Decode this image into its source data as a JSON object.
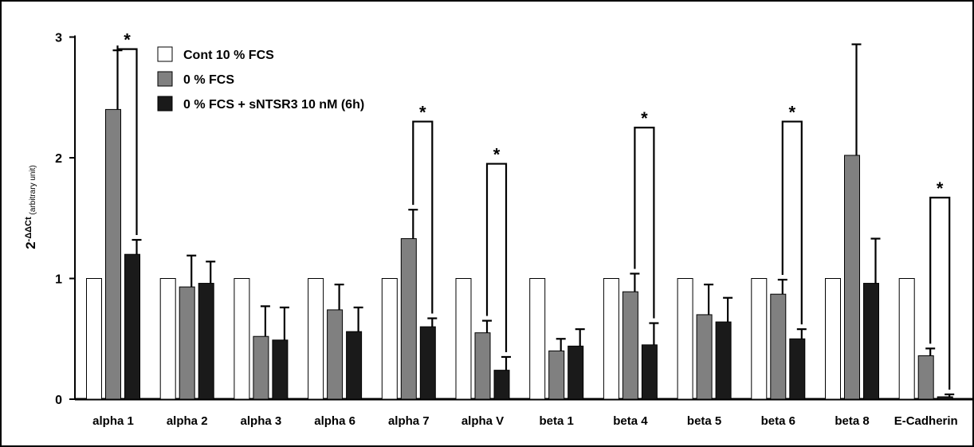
{
  "chart_data": {
    "type": "bar",
    "ylabel": {
      "main": "2",
      "superscript": "-ΔΔCt",
      "unit": " (arbitrary unit)"
    },
    "ylim": [
      0,
      3
    ],
    "yticks": [
      0,
      1,
      2,
      3
    ],
    "ytick_labels": [
      "0",
      "1",
      "2",
      "3"
    ],
    "grid": false,
    "legend_position": "top-left",
    "categories": [
      "alpha 1",
      "alpha 2",
      "alpha 3",
      "alpha 6",
      "alpha 7",
      "alpha V",
      "beta 1",
      "beta 4",
      "beta 5",
      "beta 6",
      "beta 8",
      "E-Cadherin"
    ],
    "series": [
      {
        "name": "Cont 10 % FCS",
        "color": "#ffffff",
        "values": [
          1,
          1,
          1,
          1,
          1,
          1,
          1,
          1,
          1,
          1,
          1,
          1
        ],
        "errors": [
          0,
          0,
          0,
          0,
          0,
          0,
          0,
          0,
          0,
          0,
          0,
          0
        ]
      },
      {
        "name": "0 % FCS",
        "color": "#808080",
        "values": [
          2.4,
          0.93,
          0.52,
          0.74,
          1.33,
          0.55,
          0.4,
          0.89,
          0.7,
          0.87,
          2.02,
          0.36
        ],
        "errors": [
          0.49,
          0.26,
          0.25,
          0.21,
          0.24,
          0.1,
          0.1,
          0.15,
          0.25,
          0.12,
          0.92,
          0.06
        ]
      },
      {
        "name": "0 % FCS + sNTSR3 10 nM (6h)",
        "color": "#1a1a1a",
        "values": [
          1.2,
          0.96,
          0.49,
          0.56,
          0.6,
          0.24,
          0.44,
          0.45,
          0.64,
          0.5,
          0.96,
          0.02
        ],
        "errors": [
          0.12,
          0.18,
          0.27,
          0.2,
          0.07,
          0.11,
          0.14,
          0.18,
          0.2,
          0.08,
          0.37,
          0.02
        ]
      }
    ],
    "significance": [
      {
        "category_index": 0,
        "label": "*",
        "top": 2.9
      },
      {
        "category_index": 4,
        "label": "*",
        "top": 2.3
      },
      {
        "category_index": 5,
        "label": "*",
        "top": 1.95
      },
      {
        "category_index": 7,
        "label": "*",
        "top": 2.25
      },
      {
        "category_index": 9,
        "label": "*",
        "top": 2.3
      },
      {
        "category_index": 11,
        "label": "*",
        "top": 1.67
      }
    ]
  }
}
